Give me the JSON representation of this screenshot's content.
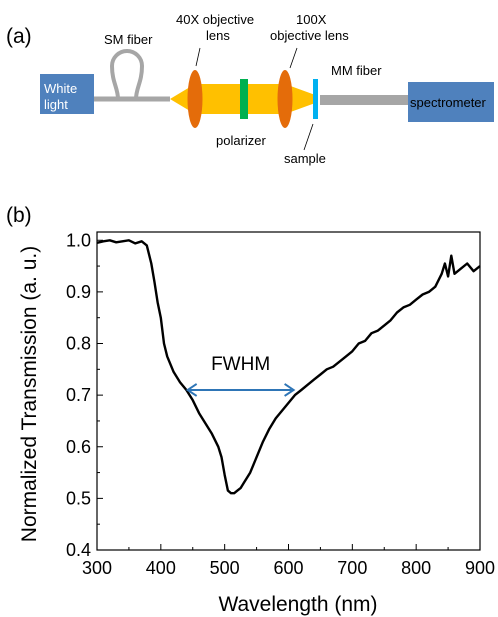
{
  "panel_a": {
    "label": "(a)",
    "components": {
      "white_light": "White light",
      "sm_fiber": "SM fiber",
      "objective_40x_line1": "40X objective",
      "objective_40x_line2": "lens",
      "objective_100x_line1": "100X",
      "objective_100x_line2": "objective lens",
      "mm_fiber": "MM fiber",
      "polarizer": "polarizer",
      "sample": "sample",
      "spectrometer": "spectrometer"
    },
    "colors": {
      "box_fill": "#4f81bd",
      "beam": "#ffc000",
      "lens": "#e46c0a",
      "polarizer": "#00b050",
      "sample": "#00b0f0",
      "fiber": "#a6a6a6"
    }
  },
  "panel_b": {
    "label": "(b)",
    "annotation": "FWHM",
    "annotation_color": "#2e75b6",
    "chart_data": {
      "type": "line",
      "xlabel": "Wavelength (nm)",
      "ylabel": "Normalized Transmission (a. u.)",
      "xlim": [
        300,
        900
      ],
      "ylim": [
        0.4,
        1.0
      ],
      "xticks": [
        "300",
        "400",
        "500",
        "600",
        "700",
        "800",
        "900"
      ],
      "yticks": [
        "0.4",
        "0.5",
        "0.6",
        "0.7",
        "0.8",
        "0.9",
        "1.0"
      ],
      "fwhm_range": [
        442,
        608
      ],
      "fwhm_level": 0.71,
      "series": [
        {
          "x": [
            300,
            310,
            320,
            330,
            340,
            350,
            360,
            370,
            378,
            385,
            390,
            395,
            400,
            405,
            410,
            420,
            430,
            440,
            450,
            460,
            470,
            480,
            490,
            495,
            500,
            505,
            510,
            515,
            520,
            525,
            530,
            540,
            550,
            560,
            570,
            580,
            590,
            600,
            610,
            620,
            630,
            640,
            650,
            660,
            670,
            680,
            690,
            700,
            710,
            720,
            730,
            740,
            750,
            760,
            770,
            780,
            790,
            800,
            810,
            820,
            830,
            840,
            845,
            850,
            855,
            860,
            870,
            880,
            890,
            900
          ],
          "y": [
            0.995,
            0.998,
            1.0,
            0.996,
            0.998,
            1.0,
            0.994,
            0.998,
            0.99,
            0.955,
            0.92,
            0.88,
            0.85,
            0.8,
            0.775,
            0.745,
            0.725,
            0.71,
            0.69,
            0.665,
            0.645,
            0.625,
            0.6,
            0.58,
            0.545,
            0.515,
            0.51,
            0.51,
            0.515,
            0.52,
            0.53,
            0.55,
            0.58,
            0.61,
            0.635,
            0.655,
            0.67,
            0.685,
            0.7,
            0.71,
            0.72,
            0.73,
            0.74,
            0.75,
            0.755,
            0.765,
            0.775,
            0.785,
            0.8,
            0.805,
            0.82,
            0.825,
            0.835,
            0.845,
            0.86,
            0.87,
            0.875,
            0.885,
            0.895,
            0.9,
            0.91,
            0.935,
            0.955,
            0.93,
            0.97,
            0.935,
            0.945,
            0.955,
            0.94,
            0.95
          ]
        }
      ]
    }
  }
}
